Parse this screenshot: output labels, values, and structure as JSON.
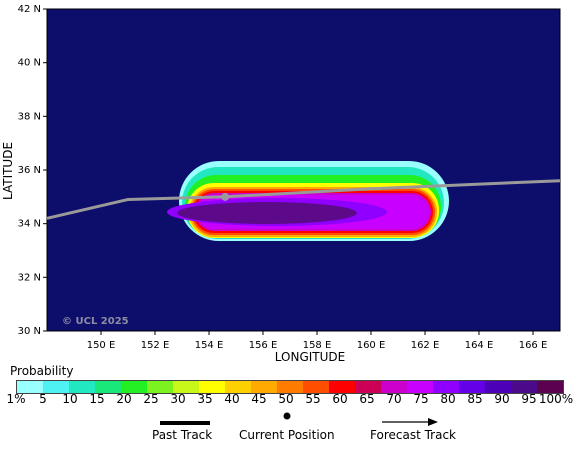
{
  "map": {
    "watermark": "© UCL 2025",
    "x_axis_title": "LONGITUDE",
    "y_axis_title": "LATITUDE",
    "lon_range": [
      148,
      167
    ],
    "lat_range": [
      30,
      42
    ],
    "lon_ticks": [
      "150 E",
      "152 E",
      "154 E",
      "156 E",
      "158 E",
      "160 E",
      "162 E",
      "164 E",
      "166 E"
    ],
    "lat_ticks": [
      "30 N",
      "32 N",
      "34 N",
      "36 N",
      "38 N",
      "40 N",
      "42 N"
    ],
    "background_color": "#0d0d6b",
    "track_color": "#9a9a9a",
    "past_track_points": [
      [
        148,
        34.2
      ],
      [
        151,
        34.9
      ],
      [
        154.6,
        35.0
      ]
    ],
    "current_position": [
      154.6,
      35.0
    ],
    "forecast_track_points": [
      [
        154.6,
        35.0
      ],
      [
        160,
        35.3
      ],
      [
        167,
        35.6
      ]
    ]
  },
  "legend": {
    "probability_title": "Probability",
    "scale_labels": [
      "1%",
      "5",
      "10",
      "15",
      "20",
      "25",
      "30",
      "35",
      "40",
      "45",
      "50",
      "55",
      "60",
      "65",
      "70",
      "75",
      "80",
      "85",
      "90",
      "95",
      "100%"
    ],
    "scale_colors": [
      "#9affff",
      "#4ef2f2",
      "#22e8c2",
      "#18e87a",
      "#22f022",
      "#7cf21e",
      "#c8f81a",
      "#ffff00",
      "#ffd000",
      "#ffaa00",
      "#ff7c00",
      "#ff4e00",
      "#ff0000",
      "#cc0055",
      "#cc00cc",
      "#c800ff",
      "#9000ff",
      "#6400e8",
      "#4c00b8",
      "#4a0a8a",
      "#5c0050"
    ],
    "past_track_label": "Past Track",
    "current_position_label": "Current Position",
    "forecast_track_label": "Forecast Track"
  }
}
